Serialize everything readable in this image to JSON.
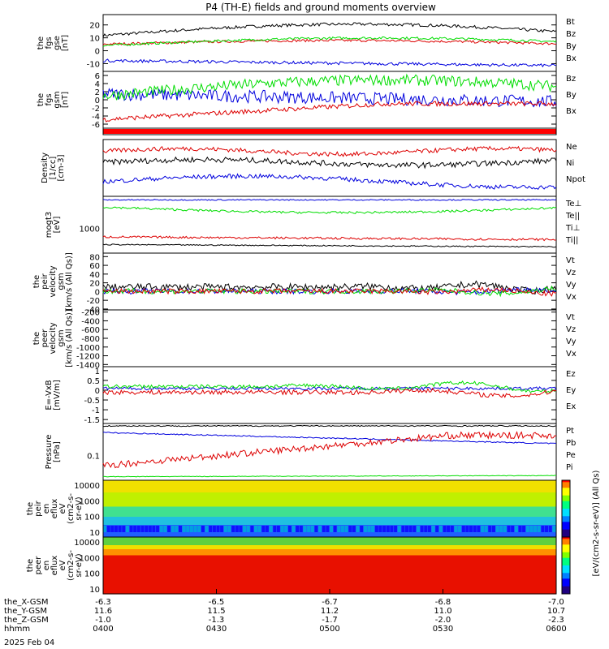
{
  "title": "P4 (TH-E) fields and ground moments overview",
  "date": "2025 Feb 04",
  "colors": {
    "black": "#000000",
    "red": "#dd0000",
    "green": "#00dd00",
    "blue": "#0000dd",
    "darkgreen": "#00aa00"
  },
  "panels": [
    {
      "id": "fgs-gse",
      "ylabel": [
        "the",
        "fgs",
        "gse",
        "[nT]"
      ],
      "ylim": [
        -16,
        28
      ],
      "yticks": [
        -10,
        0,
        10,
        20
      ],
      "legend": [
        {
          "t": "Bt",
          "c": "black"
        },
        {
          "t": "Bz",
          "c": "red"
        },
        {
          "t": "By",
          "c": "green"
        },
        {
          "t": "Bx",
          "c": "blue"
        }
      ]
    },
    {
      "id": "fgs-gsm",
      "ylabel": [
        "the",
        "fgs",
        "gsm",
        "[nT]"
      ],
      "ylim": [
        -7,
        7
      ],
      "yticks": [
        -6,
        -4,
        -2,
        0,
        2,
        4,
        6
      ],
      "legend": [
        {
          "t": "Bz",
          "c": "red"
        },
        {
          "t": "By",
          "c": "green"
        },
        {
          "t": "Bx",
          "c": "blue"
        }
      ]
    },
    {
      "id": "density",
      "ylabel": [
        "Density",
        "[1/cc]",
        "[cm-3]"
      ],
      "ylim": [
        0,
        1
      ],
      "yticks": [],
      "legend": [
        {
          "t": "Ne",
          "c": "red"
        },
        {
          "t": "Ni",
          "c": "black"
        },
        {
          "t": "Npot",
          "c": "blue"
        }
      ]
    },
    {
      "id": "temperature",
      "ylabel": [
        "mogt3",
        "[eV]"
      ],
      "ylim": [
        0,
        1
      ],
      "yticks": [],
      "ytick_labels": [
        "1000"
      ],
      "legend": [
        {
          "t": "Te⊥",
          "c": "red"
        },
        {
          "t": "Te||",
          "c": "black"
        },
        {
          "t": "Ti⊥",
          "c": "red"
        },
        {
          "t": "Ti||",
          "c": "darkgreen"
        }
      ]
    },
    {
      "id": "peir-velocity",
      "ylabel": [
        "the",
        "peir",
        "velocity",
        "gsm",
        "[km/s (All Qs)]"
      ],
      "ylim": [
        -42,
        88
      ],
      "yticks": [
        -40,
        -20,
        0,
        20,
        40,
        60,
        80
      ],
      "legend": [
        {
          "t": "Vt",
          "c": "black"
        },
        {
          "t": "Vz",
          "c": "red"
        },
        {
          "t": "Vy",
          "c": "green"
        },
        {
          "t": "Vx",
          "c": "blue"
        }
      ]
    },
    {
      "id": "peer-velocity",
      "ylabel": [
        "the",
        "peer",
        "velocity",
        "gsm",
        "[km/s (All Qs)]"
      ],
      "ylim": [
        -1450,
        -150
      ],
      "yticks": [
        -1400,
        -1200,
        -1000,
        -800,
        -600,
        -400,
        -200
      ],
      "legend": [
        {
          "t": "Vt",
          "c": "black"
        },
        {
          "t": "Vz",
          "c": "red"
        },
        {
          "t": "Vy",
          "c": "green"
        },
        {
          "t": "Vx",
          "c": "blue"
        }
      ]
    },
    {
      "id": "efield",
      "ylabel": [
        "E=-VxB",
        "[mV/m]"
      ],
      "ylim": [
        -1.7,
        1.2
      ],
      "yticks": [
        -1.5,
        -1.0,
        -0.5,
        0.0,
        0.5,
        1.0
      ],
      "legend": [
        {
          "t": "Ez",
          "c": "red"
        },
        {
          "t": "Ey",
          "c": "green"
        },
        {
          "t": "Ex",
          "c": "blue"
        }
      ]
    },
    {
      "id": "pressure",
      "ylabel": [
        "Pressure",
        "[nPa]"
      ],
      "ylim": [
        0,
        1
      ],
      "yticks": [],
      "ytick_labels": [
        "0.1"
      ],
      "legend": [
        {
          "t": "Pt",
          "c": "black"
        },
        {
          "t": "Pb",
          "c": "red"
        },
        {
          "t": "Pe",
          "c": "green"
        },
        {
          "t": "Pi",
          "c": "blue"
        }
      ]
    },
    {
      "id": "peir-spectrogram",
      "ylabel": [
        "the",
        "peir",
        "en",
        "eflux",
        "eV",
        "(cm2-s-",
        "sr-eV)"
      ],
      "ytick_labels": [
        "10",
        "100",
        "1000",
        "10000"
      ]
    },
    {
      "id": "peer-spectrogram",
      "ylabel": [
        "the",
        "peer",
        "en",
        "eflux",
        "eV",
        "(cm2-s-",
        "sr-eV)"
      ],
      "ytick_labels": [
        "10",
        "100",
        "1000",
        "10000"
      ]
    }
  ],
  "colorbar_label": "[eV/(cm2-s-sr-eV)] (All Qs)",
  "chart_data": {
    "type": "line",
    "title": "P4 (TH-E) fields and ground moments overview",
    "x": [
      "0400",
      "0430",
      "0500",
      "0530",
      "0600"
    ],
    "series": [
      {
        "name": "Bt",
        "values": [
          12,
          13,
          16,
          20,
          22
        ]
      },
      {
        "name": "Bz",
        "values": [
          5,
          6,
          8,
          8,
          6
        ]
      },
      {
        "name": "By",
        "values": [
          4,
          6,
          9,
          10,
          7
        ]
      },
      {
        "name": "Bx",
        "values": [
          -8,
          -9,
          -10,
          -11,
          -12
        ]
      }
    ]
  },
  "orbit": {
    "rows": [
      {
        "label": "the_X-GSM",
        "values": [
          "-6.3",
          "-6.5",
          "-6.7",
          "-6.8",
          "-7.0"
        ]
      },
      {
        "label": "the_Y-GSM",
        "values": [
          "11.6",
          "11.5",
          "11.2",
          "11.0",
          "10.7"
        ]
      },
      {
        "label": "the_Z-GSM",
        "values": [
          "-1.0",
          "-1.3",
          "-1.7",
          "-2.0",
          "-2.3"
        ]
      },
      {
        "label": "hhmm",
        "values": [
          "0400",
          "0430",
          "0500",
          "0530",
          "0600"
        ]
      }
    ]
  }
}
